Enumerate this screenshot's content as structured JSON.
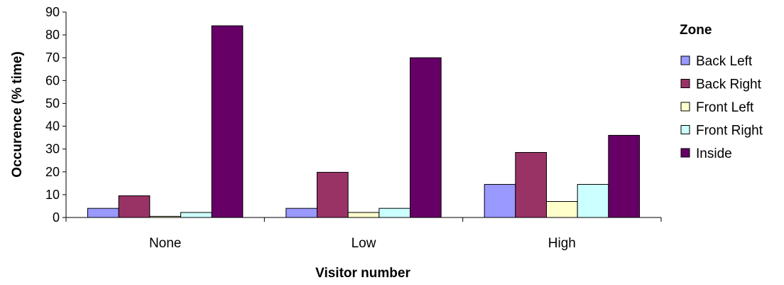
{
  "chart_data": {
    "type": "bar",
    "title": "",
    "xlabel": "Visitor number",
    "ylabel": "Occurence (% time)",
    "categories": [
      "None",
      "Low",
      "High"
    ],
    "ylim": [
      0,
      90
    ],
    "yticks": [
      0,
      10,
      20,
      30,
      40,
      50,
      60,
      70,
      80,
      90
    ],
    "grid": false,
    "legend": {
      "title": "Zone",
      "position": "right"
    },
    "series": [
      {
        "name": "Back Left",
        "color": "#9999FF",
        "values": [
          4,
          4,
          14.5
        ]
      },
      {
        "name": "Back Right",
        "color": "#993366",
        "values": [
          9.5,
          19.8,
          28.5
        ]
      },
      {
        "name": "Front Left",
        "color": "#FFFFCC",
        "values": [
          0.5,
          2.2,
          7
        ]
      },
      {
        "name": "Front Right",
        "color": "#CCFFFF",
        "values": [
          2.2,
          4,
          14.5
        ]
      },
      {
        "name": "Inside",
        "color": "#660066",
        "values": [
          84,
          70,
          36
        ]
      }
    ]
  }
}
